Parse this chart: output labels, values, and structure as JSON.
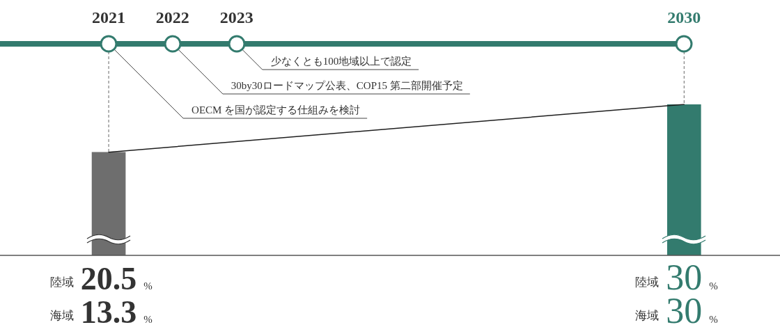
{
  "chart_data": {
    "type": "bar",
    "x": [
      2021,
      2030
    ],
    "xlim": [
      2019.3,
      2031.5
    ],
    "xticks": [
      2021,
      2022,
      2023,
      2030
    ],
    "series": [
      {
        "name": "陸域",
        "values": [
          20.5,
          30
        ],
        "colors": [
          "#6e6e6e",
          "#337b6e"
        ],
        "value_labels": [
          "20.5 %",
          "30 %"
        ]
      },
      {
        "type": "line",
        "color": "#1e1e1e",
        "values": [
          20.5,
          30
        ]
      }
    ],
    "ref_lines": [
      {
        "axis": "x",
        "value": 2021,
        "color": "#666666",
        "line_style": "dashed"
      },
      {
        "axis": "x",
        "value": 2030,
        "color": "#666666",
        "line_style": "dashed"
      }
    ],
    "annotations": [
      "少なくとも100地域以上で認定",
      "30by30ロードマップ公表、COP15 第二部開催予定",
      "OECM を国が認定する仕組みを検討",
      {
        "text": "海域 13.3 %",
        "x": 2021,
        "y": 0
      },
      {
        "text": "海域 30 %",
        "x": 2030,
        "y": 0
      }
    ]
  }
}
